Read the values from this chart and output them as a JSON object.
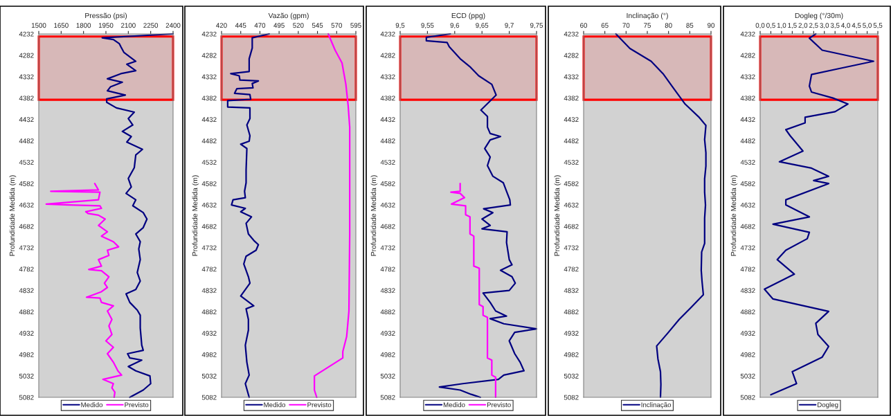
{
  "chart_data": [
    {
      "type": "line",
      "orientation": "horizontal",
      "xlabel": "Pressão (psi)",
      "ylabel": "Profundidade Medida (m)",
      "xlim": [
        1500,
        2400
      ],
      "xticks": [
        1500,
        1650,
        1800,
        1950,
        2100,
        2250,
        2400
      ],
      "ylim": [
        5082,
        4232
      ],
      "yticks": [
        4232,
        4282,
        4332,
        4382,
        4432,
        4482,
        4532,
        4582,
        4632,
        4682,
        4732,
        4782,
        4832,
        4882,
        4932,
        4982,
        5032,
        5082
      ],
      "grid": false,
      "legend": "bottom",
      "line_style": "solid",
      "marker": "none",
      "bands": [
        {
          "axis": "y",
          "from": 4238,
          "to": 4386,
          "color": "#ff0000"
        }
      ],
      "series": [
        {
          "name": "Medido",
          "color": "#000080",
          "x": [
            4232,
            4241,
            4245,
            4255,
            4262,
            4275,
            4296,
            4303,
            4318,
            4325,
            4337,
            4345,
            4356,
            4365,
            4375,
            4384,
            4392,
            4405,
            4415,
            4430,
            4445,
            4460,
            4472,
            4485,
            4502,
            4515,
            4545,
            4570,
            4590,
            4605,
            4620,
            4634,
            4650,
            4665,
            4685,
            4700,
            4718,
            4735,
            4760,
            4790,
            4810,
            4830,
            4840,
            4860,
            4878,
            4890,
            4920,
            4960,
            4972,
            4980,
            4990,
            4995,
            5010,
            5020,
            5032,
            5050,
            5065,
            5082
          ],
          "values": [
            2400,
            1925,
            2000,
            2040,
            2050,
            2070,
            2150,
            2090,
            2150,
            2050,
            1960,
            2060,
            1980,
            1960,
            2080,
            1955,
            1955,
            2020,
            2140,
            2100,
            2130,
            2060,
            2120,
            2090,
            2195,
            2150,
            2140,
            2100,
            2120,
            2085,
            2150,
            2130,
            2200,
            2225,
            2200,
            2150,
            2180,
            2170,
            2180,
            2160,
            2180,
            2150,
            2085,
            2110,
            2160,
            2180,
            2180,
            2190,
            2200,
            2095,
            2110,
            2190,
            2100,
            2150,
            2245,
            2250,
            2200,
            2110
          ]
        },
        {
          "name": "Previsto",
          "color": "#ff00ff",
          "x": [
            4582,
            4597,
            4600,
            4602,
            4620,
            4630,
            4632,
            4634,
            4640,
            4648,
            4652,
            4656,
            4665,
            4680,
            4695,
            4705,
            4718,
            4730,
            4738,
            4750,
            4760,
            4775,
            4783,
            4786,
            4800,
            4815,
            4825,
            4835,
            4848,
            4850,
            4860,
            4868,
            4880,
            4900,
            4915,
            4935,
            4950,
            4965,
            4980,
            5000,
            5020,
            5030,
            5040,
            5050,
            5060,
            5070,
            5082
          ],
          "values": [
            1875,
            1900,
            1580,
            1910,
            1900,
            1550,
            1710,
            1910,
            1920,
            1815,
            1830,
            1900,
            1945,
            1900,
            1960,
            1920,
            2000,
            2035,
            1960,
            1970,
            1900,
            1920,
            1835,
            1920,
            1970,
            1940,
            1960,
            1920,
            1820,
            1910,
            1920,
            2000,
            1960,
            1990,
            1970,
            1990,
            1950,
            2000,
            1960,
            2000,
            2030,
            2055,
            1930,
            2000,
            1990,
            2010,
            2005
          ]
        }
      ]
    },
    {
      "type": "line",
      "orientation": "horizontal",
      "xlabel": "Vazão (gpm)",
      "ylabel": "Profundidade Medida (m)",
      "xlim": [
        420,
        595
      ],
      "xticks": [
        420,
        445,
        470,
        495,
        520,
        545,
        570,
        595
      ],
      "ylim": [
        5082,
        4232
      ],
      "yticks": [
        4232,
        4282,
        4332,
        4382,
        4432,
        4482,
        4532,
        4582,
        4632,
        4682,
        4732,
        4782,
        4832,
        4882,
        4932,
        4982,
        5032,
        5082
      ],
      "grid": false,
      "legend": "bottom",
      "line_style": "solid",
      "marker": "none",
      "bands": [
        {
          "axis": "y",
          "from": 4238,
          "to": 4386,
          "color": "#ff0000"
        }
      ],
      "series": [
        {
          "name": "Medido",
          "color": "#000080",
          "x": [
            4232,
            4241,
            4265,
            4290,
            4320,
            4325,
            4330,
            4340,
            4342,
            4348,
            4358,
            4360,
            4371,
            4374,
            4385,
            4388,
            4403,
            4405,
            4430,
            4445,
            4470,
            4483,
            4490,
            4500,
            4550,
            4580,
            4600,
            4615,
            4620,
            4632,
            4640,
            4648,
            4660,
            4675,
            4700,
            4715,
            4725,
            4738,
            4752,
            4770,
            4800,
            4815,
            4830,
            4845,
            4868,
            4875,
            4900,
            4925,
            4960,
            5000,
            5030,
            5050,
            5082
          ],
          "values": [
            482,
            460,
            460,
            456,
            456,
            432,
            443,
            444,
            468,
            460,
            461,
            440,
            437,
            457,
            458,
            428,
            428,
            457,
            457,
            453,
            457,
            456,
            445,
            453,
            452,
            452,
            450,
            451,
            435,
            433,
            451,
            445,
            459,
            452,
            455,
            462,
            468,
            465,
            452,
            449,
            455,
            457,
            451,
            445,
            462,
            452,
            455,
            455,
            451,
            453,
            456,
            451,
            456
          ]
        },
        {
          "name": "Previsto",
          "color": "#ff00ff",
          "x": [
            4232,
            4270,
            4300,
            4350,
            4400,
            4450,
            4500,
            4700,
            4880,
            4940,
            4975,
            4990,
            5032,
            5065,
            5082
          ],
          "values": [
            559,
            568,
            577,
            582,
            585,
            587,
            587,
            587,
            586,
            583,
            578,
            578,
            541,
            541,
            544
          ]
        }
      ]
    },
    {
      "type": "line",
      "orientation": "horizontal",
      "xlabel": "ECD (ppg)",
      "ylabel": "Profundidade Medida (m)",
      "xlim": [
        9.5,
        9.75
      ],
      "xticks": [
        {
          "value": 9.5,
          "label": "9,5"
        },
        {
          "value": 9.55,
          "label": "9,55"
        },
        {
          "value": 9.6,
          "label": "9,6"
        },
        {
          "value": 9.65,
          "label": "9,65"
        },
        {
          "value": 9.7,
          "label": "9,7"
        },
        {
          "value": 9.75,
          "label": "9,75"
        }
      ],
      "ylim": [
        5082,
        4232
      ],
      "yticks": [
        4232,
        4282,
        4332,
        4382,
        4432,
        4482,
        4532,
        4582,
        4632,
        4682,
        4732,
        4782,
        4832,
        4882,
        4932,
        4982,
        5032,
        5082
      ],
      "grid": false,
      "legend": "bottom",
      "line_style": "solid",
      "marker": "none",
      "bands": [
        {
          "axis": "y",
          "from": 4238,
          "to": 4386,
          "color": "#ff0000"
        }
      ],
      "series": [
        {
          "name": "Medido",
          "color": "#000080",
          "x": [
            4232,
            4240,
            4248,
            4252,
            4262,
            4290,
            4310,
            4330,
            4350,
            4375,
            4385,
            4410,
            4425,
            4450,
            4465,
            4472,
            4480,
            4500,
            4520,
            4540,
            4565,
            4580,
            4600,
            4620,
            4632,
            4641,
            4650,
            4665,
            4680,
            4688,
            4695,
            4720,
            4760,
            4772,
            4785,
            4800,
            4815,
            4832,
            4838,
            4860,
            4880,
            4892,
            4898,
            4910,
            4922,
            4930,
            4950,
            4965,
            4980,
            5000,
            5020,
            5030,
            5040,
            5050,
            5058,
            5065,
            5075,
            5082
          ],
          "values": [
            9.592,
            9.548,
            9.548,
            9.586,
            9.59,
            9.61,
            9.629,
            9.644,
            9.668,
            9.676,
            9.668,
            9.648,
            9.66,
            9.66,
            9.665,
            9.684,
            9.665,
            9.655,
            9.665,
            9.66,
            9.67,
            9.689,
            9.695,
            9.701,
            9.702,
            9.653,
            9.67,
            9.65,
            9.665,
            9.65,
            9.696,
            9.695,
            9.7,
            9.705,
            9.684,
            9.705,
            9.711,
            9.7,
            9.652,
            9.665,
            9.675,
            9.695,
            9.665,
            9.69,
            9.75,
            9.71,
            9.7,
            9.705,
            9.71,
            9.72,
            9.727,
            9.69,
            9.68,
            9.615,
            9.572,
            9.61,
            9.63,
            9.647
          ]
        },
        {
          "name": "Previsto",
          "color": "#ff00ff",
          "x": [
            4582,
            4600,
            4602,
            4605,
            4615,
            4630,
            4634,
            4655,
            4660,
            4700,
            4705,
            4775,
            4780,
            4865,
            4870,
            4890,
            4895,
            4990,
            4995,
            5030,
            5035,
            5082
          ],
          "values": [
            9.61,
            9.61,
            9.593,
            9.61,
            9.618,
            9.594,
            9.62,
            9.62,
            9.628,
            9.628,
            9.635,
            9.635,
            9.645,
            9.645,
            9.652,
            9.652,
            9.66,
            9.66,
            9.668,
            9.668,
            9.675,
            9.675
          ]
        }
      ]
    },
    {
      "type": "line",
      "orientation": "horizontal",
      "xlabel": "Inclinação (°)",
      "ylabel": "Profundidade Medida (m)",
      "xlim": [
        60,
        90
      ],
      "xticks": [
        60,
        65,
        70,
        75,
        80,
        85,
        90
      ],
      "ylim": [
        5082,
        4232
      ],
      "yticks": [
        4232,
        4282,
        4332,
        4382,
        4432,
        4482,
        4532,
        4582,
        4632,
        4682,
        4732,
        4782,
        4832,
        4882,
        4932,
        4982,
        5032,
        5082
      ],
      "grid": false,
      "legend": "bottom",
      "line_style": "solid",
      "marker": "none",
      "bands": [
        {
          "axis": "y",
          "from": 4238,
          "to": 4386,
          "color": "#ff0000"
        }
      ],
      "series": [
        {
          "name": "Inclinação",
          "color": "#000080",
          "x": [
            4232,
            4266,
            4296,
            4325,
            4358,
            4396,
            4426,
            4446,
            4479,
            4510,
            4541,
            4571,
            4602,
            4632,
            4663,
            4722,
            4742,
            4785,
            4812,
            4842,
            4872,
            4900,
            4932,
            4962,
            4992,
            5022,
            5052,
            5082
          ],
          "values": [
            67.6,
            70.9,
            75.9,
            78.7,
            81.1,
            83.9,
            87.1,
            88.8,
            88.5,
            88.8,
            88.8,
            88.5,
            88.5,
            88.7,
            88.5,
            88.5,
            87.8,
            87.7,
            87.9,
            88.2,
            85.3,
            82.5,
            79.8,
            77.2,
            77.5,
            78.1,
            78.2,
            78.1
          ]
        }
      ]
    },
    {
      "type": "line",
      "orientation": "horizontal",
      "xlabel": "Dogleg (°/30m)",
      "ylabel": "Profundidade Medida (m)",
      "xlim": [
        0,
        5.5
      ],
      "xticks": [
        {
          "value": 0,
          "label": "0,0"
        },
        {
          "value": 0.5,
          "label": "0,5"
        },
        {
          "value": 1,
          "label": "1,0"
        },
        {
          "value": 1.5,
          "label": "1,5"
        },
        {
          "value": 2,
          "label": "2,0"
        },
        {
          "value": 2.5,
          "label": "2,5"
        },
        {
          "value": 3,
          "label": "3,0"
        },
        {
          "value": 3.5,
          "label": "3,5"
        },
        {
          "value": 4,
          "label": "4,0"
        },
        {
          "value": 4.5,
          "label": "4,5"
        },
        {
          "value": 5,
          "label": "5,0"
        },
        {
          "value": 5.5,
          "label": "5,5"
        }
      ],
      "ylim": [
        5082,
        4232
      ],
      "yticks": [
        4232,
        4282,
        4332,
        4382,
        4432,
        4482,
        4532,
        4582,
        4632,
        4682,
        4732,
        4782,
        4832,
        4882,
        4932,
        4982,
        5032,
        5082
      ],
      "grid": false,
      "legend": "bottom",
      "line_style": "solid",
      "marker": "none",
      "bands": [
        {
          "axis": "y",
          "from": 4238,
          "to": 4386,
          "color": "#ff0000"
        }
      ],
      "series": [
        {
          "name": "Dogleg",
          "color": "#000080",
          "x": [
            4232,
            4242,
            4270,
            4296,
            4313,
            4327,
            4354,
            4368,
            4382,
            4396,
            4414,
            4427,
            4440,
            4456,
            4470,
            4506,
            4531,
            4546,
            4565,
            4575,
            4582,
            4620,
            4632,
            4660,
            4677,
            4696,
            4711,
            4738,
            4760,
            4794,
            4829,
            4852,
            4881,
            4909,
            4935,
            4963,
            4988,
            5022,
            5050,
            5076
          ],
          "values": [
            2.6,
            2.3,
            2.9,
            5.3,
            3.7,
            2.4,
            2.3,
            2.4,
            3.4,
            4.1,
            3.5,
            2.1,
            2.1,
            1.2,
            1.4,
            2.0,
            0.9,
            2.4,
            3.2,
            2.5,
            3.2,
            1.2,
            1.2,
            2.3,
            0.6,
            2.3,
            2.2,
            1.2,
            0.8,
            1.6,
            0.2,
            0.6,
            3.2,
            2.6,
            2.7,
            3.2,
            2.9,
            1.5,
            1.7,
            0.5
          ]
        }
      ]
    }
  ]
}
